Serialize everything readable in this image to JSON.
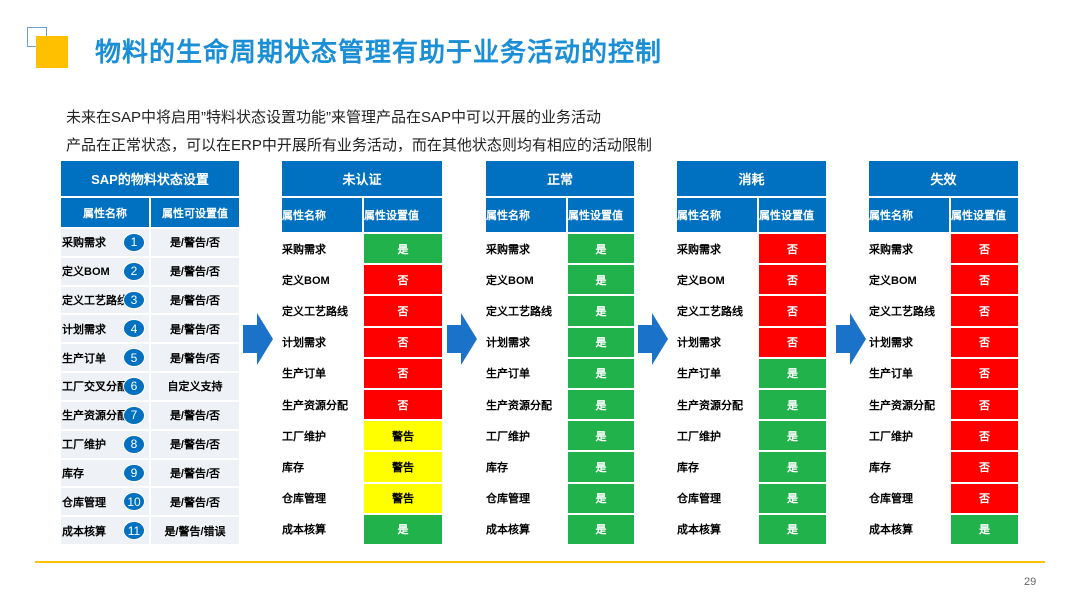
{
  "header": {
    "title": "物料的生命周期状态管理有助于业务活动的控制"
  },
  "intro": [
    "未来在SAP中将启用”特料状态设置功能”来管理产品在SAP中可以开展的业务活动",
    "产品在正常状态，可以在ERP中开展所有业务活动，而在其他状态则均有相应的活动限制"
  ],
  "settings_table": {
    "title": "SAP的物料状态设置",
    "columns": [
      "属性名称",
      "属性可设置值"
    ],
    "rows": [
      [
        "采购需求",
        1,
        "是/警告/否"
      ],
      [
        "定义BOM",
        2,
        "是/警告/否"
      ],
      [
        "定义工艺路线",
        3,
        "是/警告/否"
      ],
      [
        "计划需求",
        4,
        "是/警告/否"
      ],
      [
        "生产订单",
        5,
        "是/警告/否"
      ],
      [
        "工厂交叉分配",
        6,
        "自定义支持"
      ],
      [
        "生产资源分配",
        7,
        "是/警告/否"
      ],
      [
        "工厂维护",
        8,
        "是/警告/否"
      ],
      [
        "库存",
        9,
        "是/警告/否"
      ],
      [
        "仓库管理",
        10,
        "是/警告/否"
      ],
      [
        "成本核算",
        11,
        "是/警告/错误"
      ]
    ]
  },
  "value_colors": {
    "是": "#22b24c",
    "否": "#fe0000",
    "警告": "#ffff00"
  },
  "value_text_colors": {
    "是": "#ffffff",
    "否": "#ffffff",
    "警告": "#000000"
  },
  "status_tables": [
    {
      "title": "未认证",
      "columns": [
        "属性名称",
        "属性设置值"
      ],
      "rows": [
        [
          "采购需求",
          "是"
        ],
        [
          "定义BOM",
          "否"
        ],
        [
          "定义工艺路线",
          "否"
        ],
        [
          "计划需求",
          "否"
        ],
        [
          "生产订单",
          "否"
        ],
        [
          "生产资源分配",
          "否"
        ],
        [
          "工厂维护",
          "警告"
        ],
        [
          "库存",
          "警告"
        ],
        [
          "仓库管理",
          "警告"
        ],
        [
          "成本核算",
          "是"
        ]
      ]
    },
    {
      "title": "正常",
      "columns": [
        "属性名称",
        "属性设置值"
      ],
      "rows": [
        [
          "采购需求",
          "是"
        ],
        [
          "定义BOM",
          "是"
        ],
        [
          "定义工艺路线",
          "是"
        ],
        [
          "计划需求",
          "是"
        ],
        [
          "生产订单",
          "是"
        ],
        [
          "生产资源分配",
          "是"
        ],
        [
          "工厂维护",
          "是"
        ],
        [
          "库存",
          "是"
        ],
        [
          "仓库管理",
          "是"
        ],
        [
          "成本核算",
          "是"
        ]
      ]
    },
    {
      "title": "消耗",
      "columns": [
        "属性名称",
        "属性设置值"
      ],
      "rows": [
        [
          "采购需求",
          "否"
        ],
        [
          "定义BOM",
          "否"
        ],
        [
          "定义工艺路线",
          "否"
        ],
        [
          "计划需求",
          "否"
        ],
        [
          "生产订单",
          "是"
        ],
        [
          "生产资源分配",
          "是"
        ],
        [
          "工厂维护",
          "是"
        ],
        [
          "库存",
          "是"
        ],
        [
          "仓库管理",
          "是"
        ],
        [
          "成本核算",
          "是"
        ]
      ]
    },
    {
      "title": "失效",
      "columns": [
        "属性名称",
        "属性设置值"
      ],
      "rows": [
        [
          "采购需求",
          "否"
        ],
        [
          "定义BOM",
          "否"
        ],
        [
          "定义工艺路线",
          "否"
        ],
        [
          "计划需求",
          "否"
        ],
        [
          "生产订单",
          "否"
        ],
        [
          "生产资源分配",
          "否"
        ],
        [
          "工厂维护",
          "否"
        ],
        [
          "库存",
          "否"
        ],
        [
          "仓库管理",
          "否"
        ],
        [
          "成本核算",
          "是"
        ]
      ]
    }
  ],
  "page_number": "29"
}
